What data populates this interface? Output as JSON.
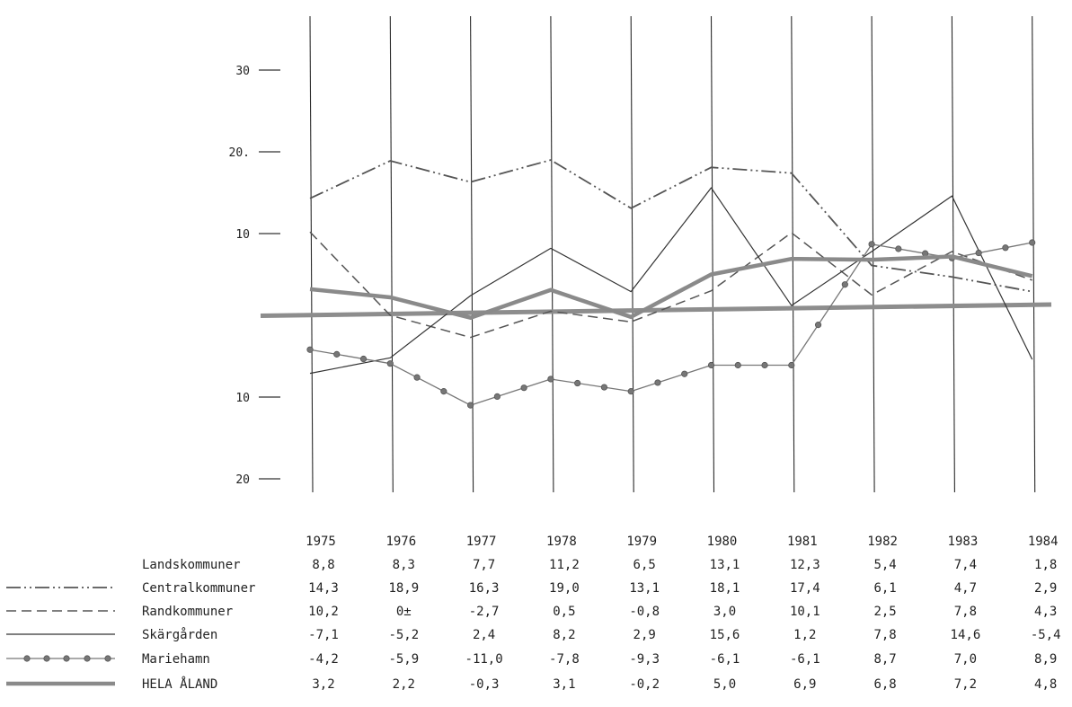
{
  "chart_data": {
    "type": "line",
    "title": "",
    "xlabel": "",
    "ylabel": "",
    "ylim": [
      -20,
      35
    ],
    "y_ticks": [
      {
        "value": 30,
        "label": "30"
      },
      {
        "value": 20,
        "label": "20."
      },
      {
        "value": 10,
        "label": "10"
      },
      {
        "value": -10,
        "label": "10"
      },
      {
        "value": -20,
        "label": "20"
      }
    ],
    "x": [
      "1975",
      "1976",
      "1977",
      "1978",
      "1979",
      "1980",
      "1981",
      "1982",
      "1983",
      "1984"
    ],
    "series": [
      {
        "name": "Landskommuner",
        "style": "none",
        "values": [
          8.8,
          8.3,
          7.7,
          11.2,
          6.5,
          13.1,
          12.3,
          5.4,
          7.4,
          1.8
        ],
        "labels": [
          "8,8",
          "8,3",
          "7,7",
          "11,2",
          "6,5",
          "13,1",
          "12,3",
          "5,4",
          "7,4",
          "1,8"
        ]
      },
      {
        "name": "Centralkommuner",
        "style": "dash-dot-dot",
        "values": [
          14.3,
          18.9,
          16.3,
          19.0,
          13.1,
          18.1,
          17.4,
          6.1,
          4.7,
          2.9
        ],
        "labels": [
          "14,3",
          "18,9",
          "16,3",
          "19,0",
          "13,1",
          "18,1",
          "17,4",
          "6,1",
          "4,7",
          "2,9"
        ]
      },
      {
        "name": "Randkommuner",
        "style": "dashed",
        "values": [
          10.2,
          0,
          -2.7,
          0.5,
          -0.8,
          3.0,
          10.1,
          2.5,
          7.8,
          4.3
        ],
        "labels": [
          "10,2",
          "0±",
          "-2,7",
          "0,5",
          "-0,8",
          "3,0",
          "10,1",
          "2,5",
          "7,8",
          "4,3"
        ]
      },
      {
        "name": "Skärgården",
        "style": "solid",
        "values": [
          -7.1,
          -5.2,
          2.4,
          8.2,
          2.9,
          15.6,
          1.2,
          7.8,
          14.6,
          -5.4
        ],
        "labels": [
          "-7,1",
          "-5,2",
          "2,4",
          "8,2",
          "2,9",
          "15,6",
          "1,2",
          "7,8",
          "14,6",
          "-5,4"
        ]
      },
      {
        "name": "Mariehamn",
        "style": "dotted-markers",
        "values": [
          -4.2,
          -5.9,
          -11.0,
          -7.8,
          -9.3,
          -6.1,
          -6.1,
          8.7,
          7.0,
          8.9
        ],
        "labels": [
          "-4,2",
          "-5,9",
          "-11,0",
          "-7,8",
          "-9,3",
          "-6,1",
          "-6,1",
          "8,7",
          "7,0",
          "8,9"
        ]
      },
      {
        "name": "HELA ÅLAND",
        "style": "thick",
        "values": [
          3.2,
          2.2,
          -0.3,
          3.1,
          -0.2,
          5.0,
          6.9,
          6.8,
          7.2,
          4.8
        ],
        "labels": [
          "3,2",
          "2,2",
          "-0,3",
          "3,1",
          "-0,2",
          "5,0",
          "6,9",
          "6,8",
          "7,2",
          "4,8"
        ]
      }
    ],
    "grid": "vertical",
    "legend": "table-bottom"
  }
}
